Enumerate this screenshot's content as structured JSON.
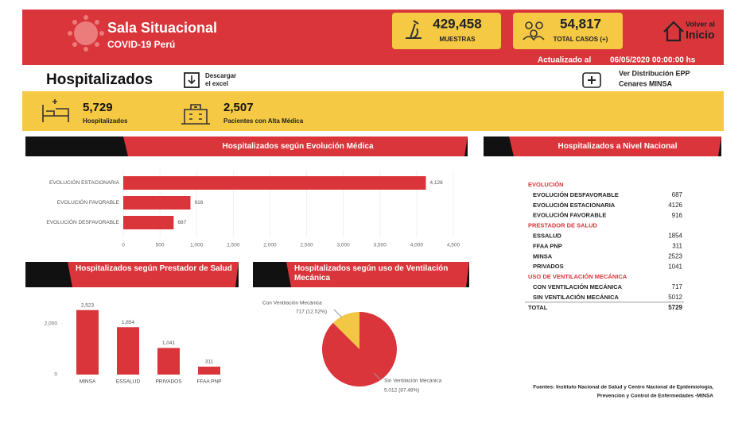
{
  "header": {
    "title": "Sala Situacional",
    "subtitle": "COVID-19 Perú",
    "kpis": [
      {
        "value": "429,458",
        "label": "MUESTRAS"
      },
      {
        "value": "54,817",
        "label": "TOTAL CASOS (+)"
      }
    ],
    "home": [
      "Volver al",
      "Inicio"
    ],
    "updated_label": "Actualizado al",
    "updated_date": "06/05/2020 00:00:00 hs"
  },
  "section": {
    "title": "Hospitalizados",
    "download": [
      "Descargar",
      "el excel"
    ],
    "link": [
      "Ver Distribución EPP",
      "Cenares MINSA"
    ]
  },
  "stats": [
    {
      "value": "5,729",
      "label": "Hospitalizados"
    },
    {
      "value": "2,507",
      "label": "Pacientes con Alta Médica"
    }
  ],
  "chart_data": [
    {
      "type": "bar",
      "orientation": "horizontal",
      "title": "Hospitalizados según Evolución Médica",
      "categories": [
        "EVOLUCIÓN ESTACIONARIA",
        "EVOLUCIÓN FAVORABLE",
        "EVOLUCIÓN DESFAVORABLE"
      ],
      "values": [
        4126,
        916,
        687
      ],
      "value_labels": [
        "4,126",
        "916",
        "687"
      ],
      "color": "#d9353b",
      "xlim": [
        0,
        4500
      ],
      "xticks": [
        0,
        500,
        {
          "value": 1000,
          "label": "1,000"
        },
        {
          "value": 1500,
          "label": "1,500"
        },
        {
          "value": 2000,
          "label": "2,000"
        },
        {
          "value": 2500,
          "label": "2,500"
        },
        {
          "value": 3000,
          "label": "3,000"
        },
        {
          "value": 3500,
          "label": "3,500"
        },
        {
          "value": 4000,
          "label": "4,000"
        },
        {
          "value": 4500,
          "label": "4,500"
        }
      ]
    },
    {
      "type": "bar",
      "orientation": "vertical",
      "title": "Hospitalizados según Prestador de Salud",
      "categories": [
        "MINSA",
        "ESSALUD",
        "PRIVADOS",
        "FFAA PNP"
      ],
      "values": [
        2523,
        1854,
        1041,
        311
      ],
      "value_labels": [
        "2,523",
        "1,854",
        "1,041",
        "311"
      ],
      "color": "#d9353b",
      "ylim": [
        0,
        2700
      ],
      "yticks": [
        0,
        {
          "value": 2000,
          "label": "2,000"
        }
      ]
    },
    {
      "type": "pie",
      "title": "Hospitalizados según uso de Ventilación Mecánica",
      "categories": [
        "Con Ventilación Mecánica",
        "Sin Ventilación Mecánica"
      ],
      "values": [
        717,
        5012
      ],
      "value_labels": [
        "717 (12.52%)",
        "5,012 (87.48%)"
      ],
      "colors": [
        "#f2c744",
        "#d9353b"
      ]
    }
  ],
  "table": {
    "title": "Hospitalizados a Nivel Nacional",
    "groups": [
      {
        "name": "EVOLUCIÓN",
        "rows": [
          [
            "EVOLUCIÓN DESFAVORABLE",
            687
          ],
          [
            "EVOLUCIÓN ESTACIONARIA",
            4126
          ],
          [
            "EVOLUCIÓN FAVORABLE",
            916
          ]
        ]
      },
      {
        "name": "PRESTADOR DE SALUD",
        "rows": [
          [
            "ESSALUD",
            1854
          ],
          [
            "FFAA PNP",
            311
          ],
          [
            "MINSA",
            2523
          ],
          [
            "PRIVADOS",
            1041
          ]
        ]
      },
      {
        "name": "USO DE VENTILACIÓN MECÁNICA",
        "rows": [
          [
            "CON VENTILACIÓN MECÁNICA",
            717
          ],
          [
            "SIN VENTILACIÓN MECÁNICA",
            5012
          ]
        ]
      }
    ],
    "total": [
      "TOTAL",
      5729
    ]
  },
  "footer": [
    "Fuentes: Instituto Nacional de Salud y Centro Nacional de Epidemiología,",
    "Prevención y Control de Enfermedades -MINSA"
  ]
}
